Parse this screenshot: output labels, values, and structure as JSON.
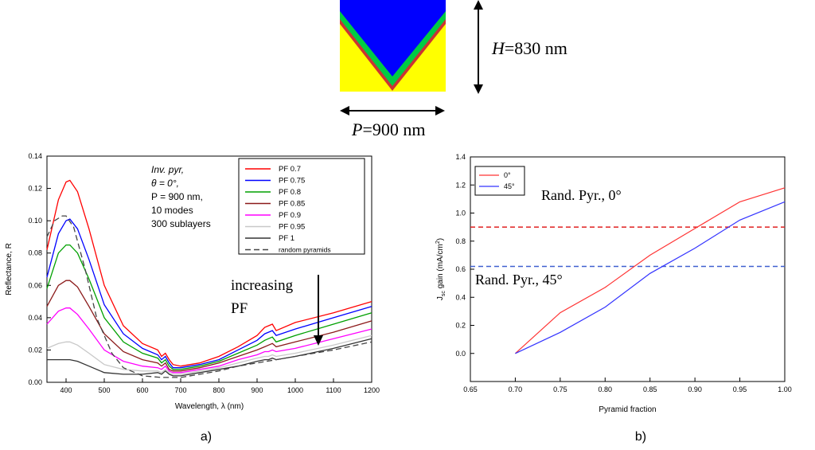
{
  "schematic": {
    "height_label_sym": "H",
    "height_label_val": "=830 nm",
    "period_label_sym": "P",
    "period_label_val": "=900 nm",
    "colors": {
      "cover": "#0000ff",
      "layer": "#00cc44",
      "thin": "#cc3333",
      "substrate": "#ffff00"
    }
  },
  "chart_data": [
    {
      "type": "line",
      "panel_label": "a)",
      "xlabel": "Wavelength, λ (nm)",
      "ylabel": "Reflectance, R",
      "xlim": [
        350,
        1200
      ],
      "ylim": [
        0,
        0.14
      ],
      "xticks": [
        400,
        500,
        600,
        700,
        800,
        900,
        1000,
        1100,
        1200
      ],
      "yticks": [
        0.0,
        0.02,
        0.04,
        0.06,
        0.08,
        0.1,
        0.12,
        0.14
      ],
      "yticklabels": [
        "0.00",
        "0.02",
        "0.04",
        "0.06",
        "0.08",
        "0.10",
        "0.12",
        "0.14"
      ],
      "legend_position": "top-right",
      "annotation_lines": [
        "Inv. pyr,",
        "θ = 0°,",
        "P = 900 nm,",
        "10 modes",
        "300 sublayers"
      ],
      "arrow_label_lines": [
        "increasing",
        "PF"
      ],
      "series": [
        {
          "name": "PF 0.7",
          "color": "#ff0000",
          "dash": false,
          "x": [
            350,
            380,
            400,
            410,
            430,
            460,
            500,
            550,
            600,
            640,
            650,
            660,
            670,
            680,
            700,
            750,
            800,
            850,
            900,
            920,
            930,
            940,
            950,
            1000,
            1100,
            1200
          ],
          "y": [
            0.082,
            0.113,
            0.124,
            0.125,
            0.118,
            0.095,
            0.06,
            0.035,
            0.024,
            0.02,
            0.016,
            0.018,
            0.014,
            0.011,
            0.01,
            0.012,
            0.016,
            0.022,
            0.029,
            0.034,
            0.035,
            0.036,
            0.032,
            0.037,
            0.043,
            0.05
          ]
        },
        {
          "name": "PF 0.75",
          "color": "#0000ff",
          "dash": false,
          "x": [
            350,
            380,
            400,
            410,
            430,
            460,
            500,
            550,
            600,
            640,
            650,
            660,
            670,
            680,
            700,
            750,
            800,
            850,
            900,
            920,
            930,
            940,
            950,
            1000,
            1100,
            1200
          ],
          "y": [
            0.065,
            0.092,
            0.1,
            0.101,
            0.095,
            0.076,
            0.048,
            0.03,
            0.021,
            0.017,
            0.014,
            0.016,
            0.012,
            0.009,
            0.009,
            0.011,
            0.014,
            0.02,
            0.026,
            0.03,
            0.031,
            0.032,
            0.029,
            0.033,
            0.04,
            0.047
          ]
        },
        {
          "name": "PF 0.8",
          "color": "#00a000",
          "dash": false,
          "x": [
            350,
            380,
            400,
            410,
            430,
            460,
            500,
            550,
            600,
            640,
            650,
            660,
            670,
            680,
            700,
            750,
            800,
            850,
            900,
            920,
            930,
            940,
            950,
            1000,
            1100,
            1200
          ],
          "y": [
            0.058,
            0.08,
            0.085,
            0.085,
            0.08,
            0.064,
            0.04,
            0.025,
            0.018,
            0.015,
            0.012,
            0.014,
            0.01,
            0.008,
            0.008,
            0.01,
            0.013,
            0.018,
            0.023,
            0.026,
            0.027,
            0.028,
            0.025,
            0.029,
            0.036,
            0.043
          ]
        },
        {
          "name": "PF 0.85",
          "color": "#8b1a1a",
          "dash": false,
          "x": [
            350,
            380,
            400,
            410,
            430,
            460,
            500,
            550,
            600,
            640,
            650,
            660,
            670,
            680,
            700,
            750,
            800,
            850,
            900,
            920,
            930,
            940,
            950,
            1000,
            1100,
            1200
          ],
          "y": [
            0.047,
            0.06,
            0.063,
            0.063,
            0.059,
            0.047,
            0.03,
            0.019,
            0.014,
            0.012,
            0.01,
            0.012,
            0.008,
            0.007,
            0.007,
            0.009,
            0.012,
            0.016,
            0.02,
            0.022,
            0.023,
            0.024,
            0.022,
            0.025,
            0.031,
            0.038
          ]
        },
        {
          "name": "PF 0.9",
          "color": "#ff00ff",
          "dash": false,
          "x": [
            350,
            380,
            400,
            410,
            430,
            460,
            500,
            550,
            600,
            640,
            650,
            660,
            670,
            680,
            700,
            750,
            800,
            850,
            900,
            920,
            930,
            940,
            950,
            1000,
            1100,
            1200
          ],
          "y": [
            0.036,
            0.044,
            0.046,
            0.046,
            0.042,
            0.033,
            0.02,
            0.013,
            0.01,
            0.009,
            0.008,
            0.01,
            0.007,
            0.006,
            0.006,
            0.008,
            0.01,
            0.014,
            0.017,
            0.019,
            0.019,
            0.02,
            0.019,
            0.021,
            0.027,
            0.033
          ]
        },
        {
          "name": "PF 0.95",
          "color": "#c8c8c8",
          "dash": false,
          "x": [
            350,
            380,
            400,
            410,
            430,
            460,
            500,
            550,
            600,
            640,
            650,
            660,
            670,
            680,
            700,
            750,
            800,
            850,
            900,
            920,
            930,
            940,
            950,
            1000,
            1100,
            1200
          ],
          "y": [
            0.021,
            0.024,
            0.025,
            0.025,
            0.023,
            0.018,
            0.011,
            0.008,
            0.007,
            0.007,
            0.006,
            0.008,
            0.006,
            0.005,
            0.005,
            0.007,
            0.009,
            0.012,
            0.015,
            0.016,
            0.016,
            0.017,
            0.016,
            0.018,
            0.023,
            0.029
          ]
        },
        {
          "name": "PF 1",
          "color": "#333333",
          "dash": false,
          "x": [
            350,
            380,
            400,
            410,
            430,
            460,
            500,
            550,
            600,
            640,
            650,
            660,
            670,
            680,
            700,
            750,
            800,
            850,
            900,
            920,
            930,
            940,
            950,
            1000,
            1100,
            1200
          ],
          "y": [
            0.014,
            0.014,
            0.014,
            0.014,
            0.013,
            0.01,
            0.006,
            0.005,
            0.005,
            0.006,
            0.005,
            0.007,
            0.005,
            0.004,
            0.004,
            0.006,
            0.008,
            0.01,
            0.013,
            0.014,
            0.014,
            0.015,
            0.014,
            0.016,
            0.021,
            0.027
          ]
        },
        {
          "name": "random pyramids",
          "color": "#444444",
          "dash": true,
          "x": [
            350,
            370,
            390,
            400,
            420,
            450,
            480,
            520,
            550,
            600,
            650,
            700,
            750,
            800,
            850,
            900,
            950,
            1000,
            1100,
            1200
          ],
          "y": [
            0.09,
            0.1,
            0.103,
            0.103,
            0.096,
            0.07,
            0.04,
            0.018,
            0.009,
            0.004,
            0.003,
            0.003,
            0.005,
            0.007,
            0.01,
            0.012,
            0.014,
            0.016,
            0.02,
            0.025
          ]
        }
      ]
    },
    {
      "type": "line",
      "panel_label": "b)",
      "xlabel": "Pyramid fraction",
      "ylabel_main": "J",
      "ylabel_sub": "sc",
      "ylabel_mid": " gain (mA/cm",
      "ylabel_sup": "2",
      "ylabel_end": ")",
      "xlim": [
        0.65,
        1.0
      ],
      "ylim": [
        -0.2,
        1.4
      ],
      "xticks": [
        0.65,
        0.7,
        0.75,
        0.8,
        0.85,
        0.9,
        0.95,
        1.0
      ],
      "xticklabels": [
        "0.65",
        "0.70",
        "0.75",
        "0.80",
        "0.85",
        "0.90",
        "0.95",
        "1.00"
      ],
      "yticks": [
        0.0,
        0.2,
        0.4,
        0.6,
        0.8,
        1.0,
        1.2,
        1.4
      ],
      "yticklabels": [
        "0.0",
        "0.2",
        "0.4",
        "0.6",
        "0.8",
        "1.0",
        "1.2",
        "1.4"
      ],
      "legend_position": "top-left",
      "series": [
        {
          "name": "0°",
          "color": "#ff3333",
          "x": [
            0.7,
            0.75,
            0.8,
            0.85,
            0.9,
            0.95,
            1.0
          ],
          "y": [
            0.0,
            0.29,
            0.47,
            0.7,
            0.89,
            1.08,
            1.18
          ]
        },
        {
          "name": "45°",
          "color": "#3333ff",
          "x": [
            0.7,
            0.75,
            0.8,
            0.85,
            0.9,
            0.95,
            1.0
          ],
          "y": [
            0.0,
            0.15,
            0.33,
            0.57,
            0.75,
            0.95,
            1.08
          ]
        }
      ],
      "reference_lines": [
        {
          "label": "Rand. Pyr., 0°",
          "y": 0.9,
          "color": "#e02020"
        },
        {
          "label": "Rand. Pyr., 45°",
          "y": 0.62,
          "color": "#4060d0"
        }
      ]
    }
  ]
}
